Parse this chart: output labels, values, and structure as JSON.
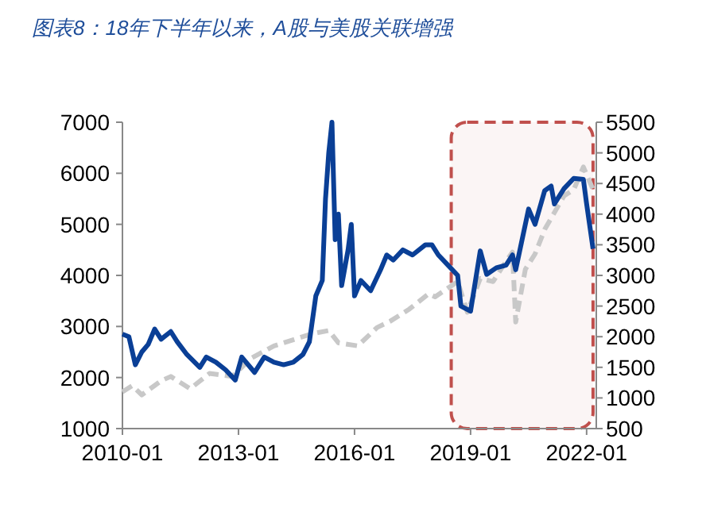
{
  "chart_data": {
    "type": "line",
    "title": "图表8：18年下半年以来，A股与美股关联增强",
    "xlim": [
      "2010-01",
      "2022-04"
    ],
    "xticks": [
      "2010-01",
      "2013-01",
      "2016-01",
      "2019-01",
      "2022-01"
    ],
    "ylim": [
      1000,
      7000
    ],
    "yticks": [
      1000,
      2000,
      3000,
      4000,
      5000,
      6000,
      7000
    ],
    "y2lim": [
      500,
      5500
    ],
    "y2ticks": [
      500,
      1000,
      1500,
      2000,
      2500,
      3000,
      3500,
      4000,
      4500,
      5000,
      5500
    ],
    "grid": false,
    "bands": [
      {
        "axis": "x",
        "from": "2018-07",
        "to": "2022-03",
        "color": "#c0504d"
      }
    ],
    "series": [
      {
        "color": "#0a3f96",
        "line_style": "solid",
        "x": [
          "2010-01",
          "2010-03",
          "2010-05",
          "2010-07",
          "2010-09",
          "2010-11",
          "2011-01",
          "2011-04",
          "2011-06",
          "2011-09",
          "2012-01",
          "2012-03",
          "2012-06",
          "2012-09",
          "2012-12",
          "2013-02",
          "2013-06",
          "2013-09",
          "2013-12",
          "2014-03",
          "2014-06",
          "2014-09",
          "2014-11",
          "2015-01",
          "2015-03",
          "2015-04",
          "2015-05",
          "2015-06",
          "2015-07",
          "2015-08",
          "2015-09",
          "2015-11",
          "2015-12",
          "2016-01",
          "2016-03",
          "2016-06",
          "2016-09",
          "2016-11",
          "2017-01",
          "2017-04",
          "2017-07",
          "2017-11",
          "2018-01",
          "2018-03",
          "2018-06",
          "2018-09",
          "2018-10",
          "2019-01",
          "2019-04",
          "2019-06",
          "2019-09",
          "2019-12",
          "2020-02",
          "2020-03",
          "2020-07",
          "2020-09",
          "2020-12",
          "2021-02",
          "2021-03",
          "2021-06",
          "2021-09",
          "2021-12",
          "2022-01",
          "2022-03"
        ],
        "values": [
          2850,
          2800,
          2250,
          2500,
          2650,
          2950,
          2750,
          2900,
          2700,
          2450,
          2200,
          2400,
          2300,
          2150,
          1950,
          2400,
          2100,
          2400,
          2300,
          2250,
          2300,
          2450,
          2700,
          3600,
          3900,
          5500,
          6400,
          7000,
          4700,
          5200,
          3800,
          4500,
          5000,
          3600,
          3900,
          3700,
          4100,
          4400,
          4300,
          4500,
          4400,
          4600,
          4600,
          4400,
          4200,
          4000,
          3400,
          3300,
          4480,
          4020,
          4150,
          4200,
          4400,
          4110,
          5300,
          5000,
          5660,
          5750,
          5400,
          5700,
          5900,
          5880,
          5400,
          4520
        ]
      },
      {
        "color": "#c8c8c8",
        "line_style": "dashed",
        "axis": "y2",
        "x": [
          "2010-01",
          "2010-04",
          "2010-07",
          "2011-01",
          "2011-04",
          "2011-10",
          "2012-04",
          "2012-11",
          "2013-05",
          "2013-12",
          "2014-06",
          "2014-12",
          "2015-05",
          "2015-08",
          "2016-02",
          "2016-08",
          "2016-12",
          "2017-06",
          "2017-12",
          "2018-02",
          "2018-09",
          "2018-12",
          "2019-04",
          "2019-08",
          "2019-12",
          "2020-02",
          "2020-03",
          "2020-06",
          "2020-09",
          "2020-12",
          "2021-06",
          "2021-09",
          "2021-12",
          "2022-03"
        ],
        "values": [
          1100,
          1200,
          1050,
          1280,
          1350,
          1150,
          1400,
          1350,
          1650,
          1850,
          1950,
          2050,
          2100,
          1900,
          1850,
          2150,
          2250,
          2450,
          2700,
          2650,
          2900,
          2400,
          2950,
          2900,
          3230,
          3380,
          2240,
          3100,
          3350,
          3750,
          4300,
          4400,
          4770,
          4400
        ]
      }
    ]
  }
}
